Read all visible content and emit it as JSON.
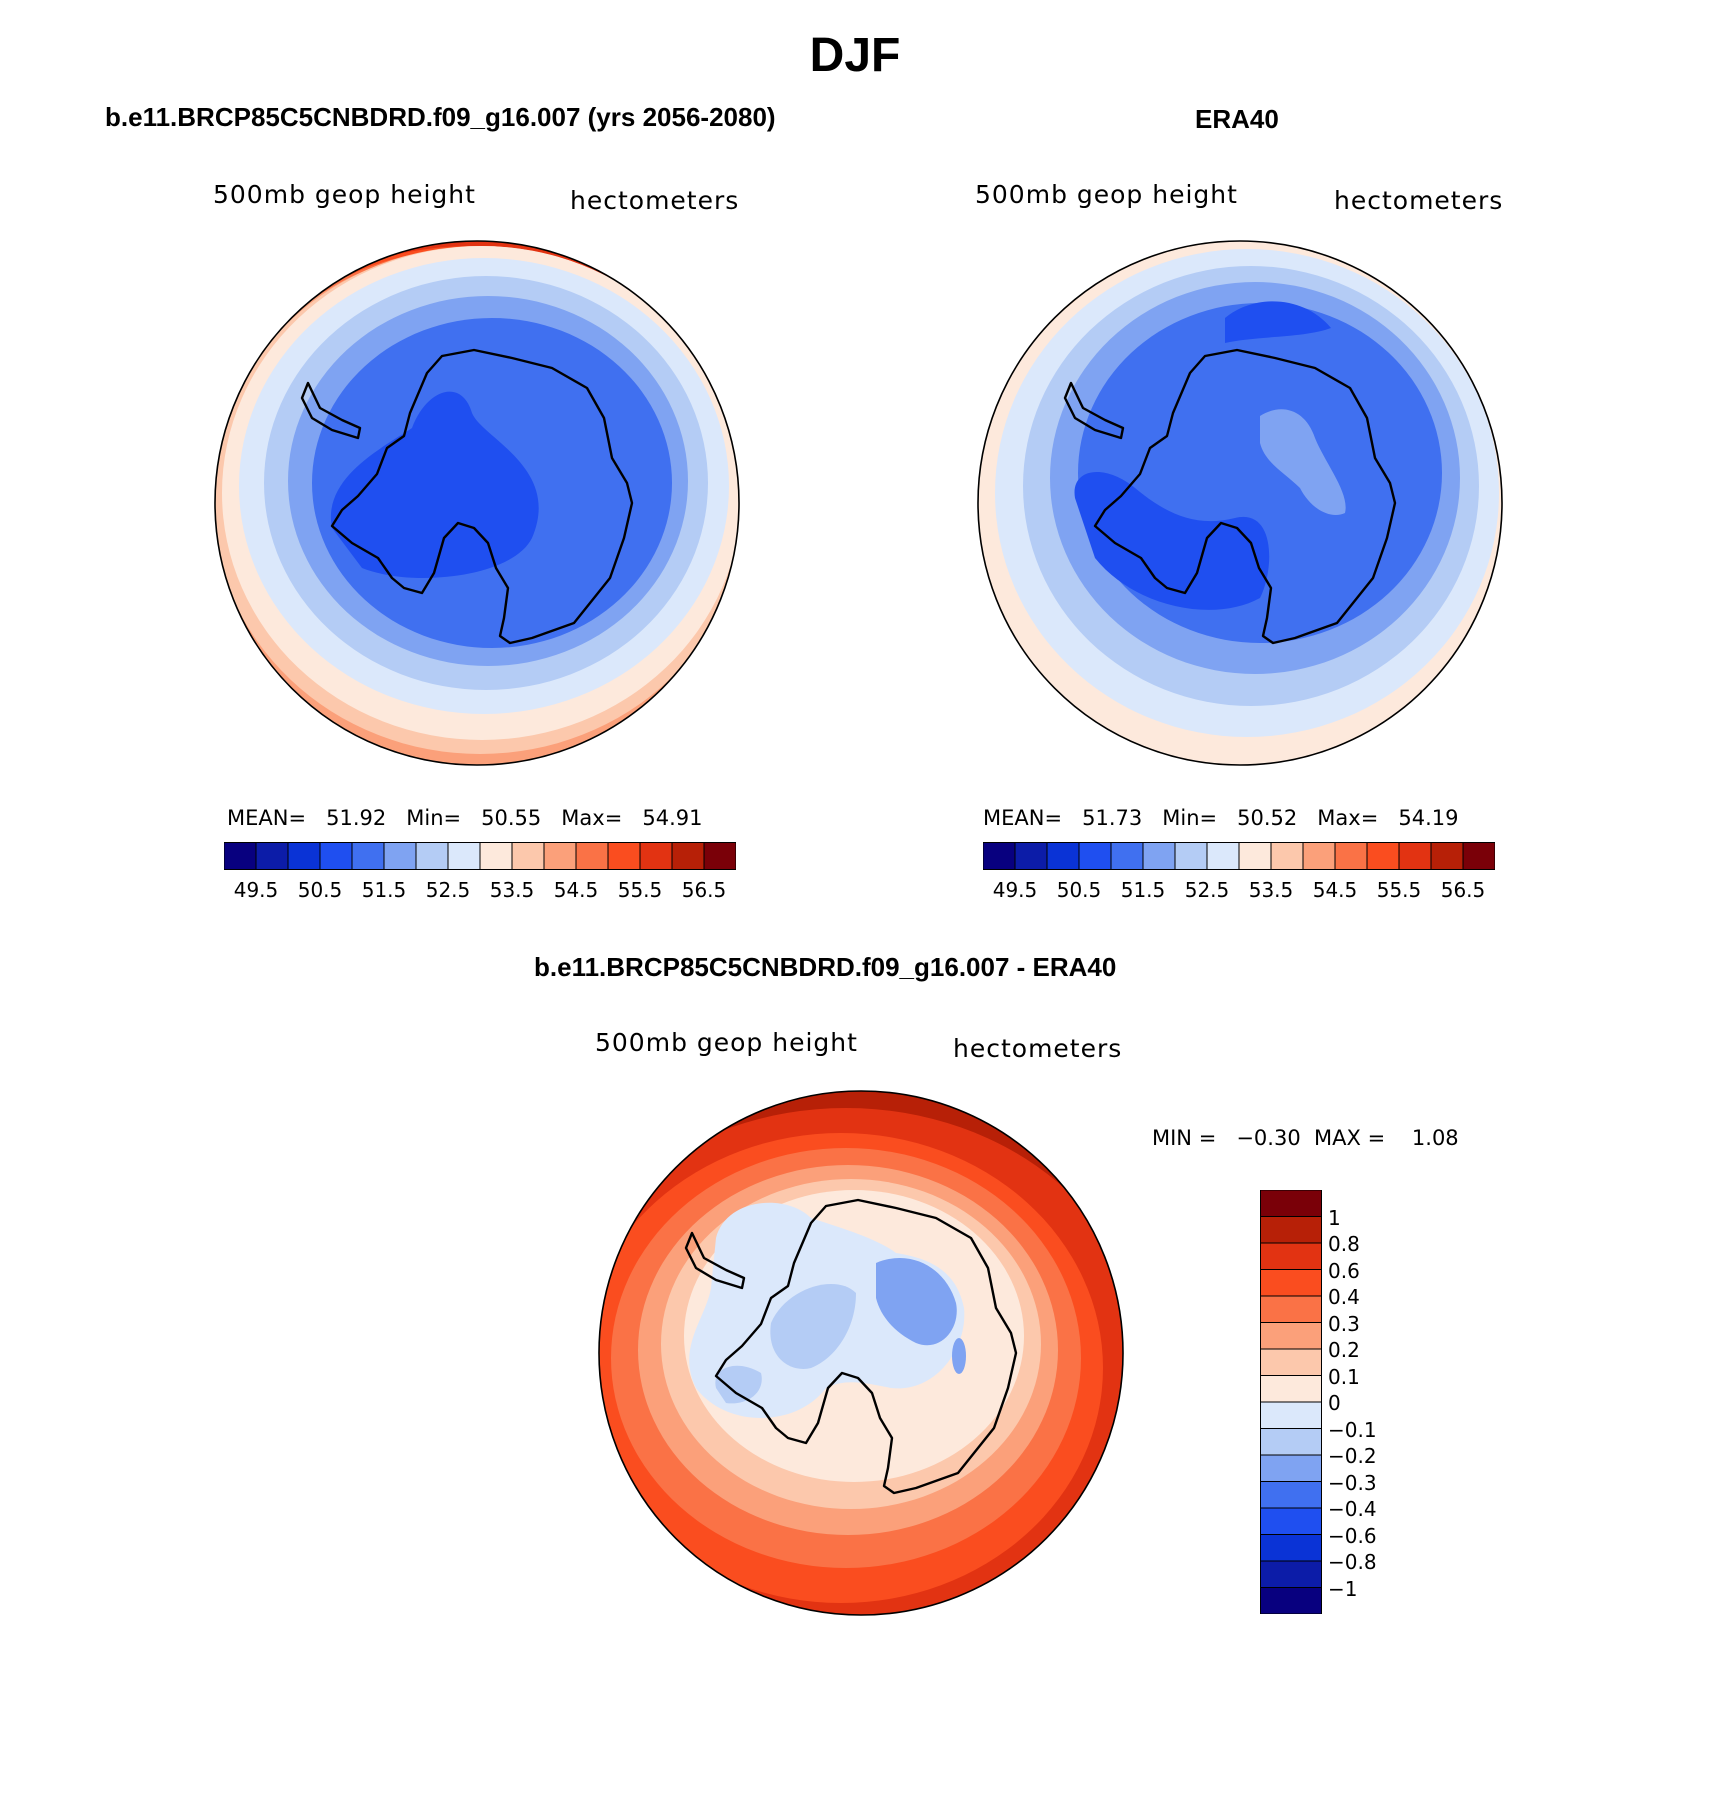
{
  "figure_title": "DJF",
  "colors": {
    "abs_scale": [
      "#08007f",
      "#0c1ca8",
      "#0a33d6",
      "#1f4ff0",
      "#4070f0",
      "#7fa3f2",
      "#b4ccf5",
      "#dbe8fb",
      "#fde9dc",
      "#fcc8ac",
      "#fba07a",
      "#fa7246",
      "#fa4d1f",
      "#e23312",
      "#b72007",
      "#7a0008"
    ],
    "diff_scale": [
      "#08007f",
      "#0c1ca8",
      "#0a33d6",
      "#1f4ff0",
      "#4070f0",
      "#7fa3f2",
      "#b4ccf5",
      "#dbe8fb",
      "#fde9dc",
      "#fcc8ac",
      "#fba07a",
      "#fa7246",
      "#fa4d1f",
      "#e23312",
      "#b72007",
      "#7a0008"
    ],
    "coastline": "#000000"
  },
  "panels": [
    {
      "id": "model",
      "title": "b.e11.BRCP85C5CNBDRD.f09_g16.007 (yrs 2056-2080)",
      "variable": "500mb geop height",
      "units": "hectometers",
      "stats": {
        "mean_label": "MEAN=",
        "mean": "51.92",
        "min_label": "Min=",
        "min": "50.55",
        "max_label": "Max=",
        "max": "54.91"
      },
      "colorbar_ticks": [
        "49.5",
        "50.5",
        "51.5",
        "52.5",
        "53.5",
        "54.5",
        "55.5",
        "56.5"
      ]
    },
    {
      "id": "obs",
      "title": "ERA40",
      "variable": "500mb geop height",
      "units": "hectometers",
      "stats": {
        "mean_label": "MEAN=",
        "mean": "51.73",
        "min_label": "Min=",
        "min": "50.52",
        "max_label": "Max=",
        "max": "54.19"
      },
      "colorbar_ticks": [
        "49.5",
        "50.5",
        "51.5",
        "52.5",
        "53.5",
        "54.5",
        "55.5",
        "56.5"
      ]
    },
    {
      "id": "diff",
      "title": "b.e11.BRCP85C5CNBDRD.f09_g16.007 - ERA40",
      "variable": "500mb geop height",
      "units": "hectometers",
      "stats": {
        "min_label": "MIN =",
        "min": "−0.30",
        "max_label": "MAX =",
        "max": "1.08"
      },
      "colorbar_ticks": [
        "1",
        "0.8",
        "0.6",
        "0.4",
        "0.3",
        "0.2",
        "0.1",
        "0",
        "−0.1",
        "−0.2",
        "−0.3",
        "−0.4",
        "−0.6",
        "−0.8",
        "−1"
      ]
    }
  ]
}
